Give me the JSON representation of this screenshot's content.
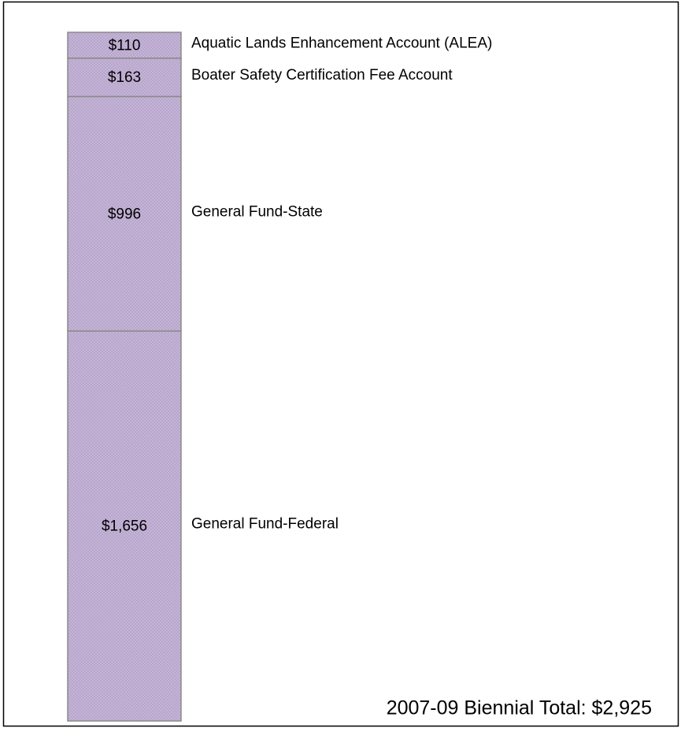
{
  "chart_data": {
    "type": "bar",
    "stacked": true,
    "color": "#c6b6d8",
    "series": [
      {
        "name": "Aquatic Lands Enhancement Account (ALEA)",
        "values": [
          110
        ],
        "value_labels": [
          "$110"
        ]
      },
      {
        "name": "Boater Safety Certification Fee Account",
        "values": [
          163
        ],
        "value_labels": [
          "$163"
        ]
      },
      {
        "name": "General Fund-State",
        "values": [
          996
        ],
        "value_labels": [
          "$996"
        ]
      },
      {
        "name": "General Fund-Federal",
        "values": [
          1656
        ],
        "value_labels": [
          "$1,656"
        ]
      }
    ],
    "annotation": "2007-09 Biennial Total: $2,925"
  }
}
